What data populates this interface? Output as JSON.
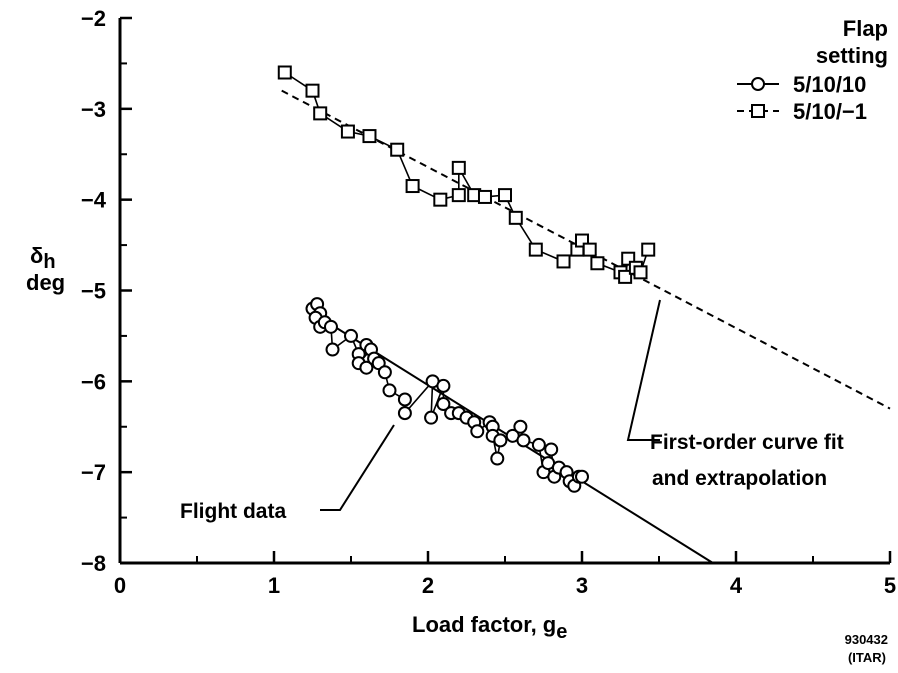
{
  "chart_data": {
    "type": "line",
    "xlabel": "Load factor, ",
    "xlabel_sub": "e",
    "xlabel_var": "g",
    "ylabel_symbol": "δ",
    "ylabel_sub": "h",
    "ylabel_unit": "deg",
    "xlim": [
      0,
      5
    ],
    "ylim": [
      -8,
      -2
    ],
    "xticks": [
      "0",
      "1",
      "2",
      "3",
      "4",
      "5"
    ],
    "yticks": [
      "−2",
      "−3",
      "−4",
      "−5",
      "−6",
      "−7",
      "−8"
    ],
    "grid": false,
    "legend": {
      "title_line1": "Flap",
      "title_line2": "setting",
      "position": "top-right"
    },
    "series": [
      {
        "name": "5/10/10",
        "marker": "circle",
        "line": "solid",
        "points": [
          [
            1.25,
            -5.2
          ],
          [
            1.28,
            -5.15
          ],
          [
            1.3,
            -5.25
          ],
          [
            1.27,
            -5.3
          ],
          [
            1.3,
            -5.4
          ],
          [
            1.33,
            -5.35
          ],
          [
            1.37,
            -5.4
          ],
          [
            1.38,
            -5.65
          ],
          [
            1.5,
            -5.5
          ],
          [
            1.55,
            -5.7
          ],
          [
            1.6,
            -5.6
          ],
          [
            1.63,
            -5.65
          ],
          [
            1.55,
            -5.8
          ],
          [
            1.6,
            -5.85
          ],
          [
            1.65,
            -5.75
          ],
          [
            1.68,
            -5.8
          ],
          [
            1.72,
            -5.9
          ],
          [
            1.75,
            -6.1
          ],
          [
            1.85,
            -6.2
          ],
          [
            1.85,
            -6.35
          ],
          [
            2.03,
            -6.0
          ],
          [
            2.02,
            -6.4
          ],
          [
            2.1,
            -6.05
          ],
          [
            2.1,
            -6.25
          ],
          [
            2.15,
            -6.35
          ],
          [
            2.2,
            -6.35
          ],
          [
            2.25,
            -6.4
          ],
          [
            2.3,
            -6.45
          ],
          [
            2.32,
            -6.55
          ],
          [
            2.4,
            -6.45
          ],
          [
            2.42,
            -6.5
          ],
          [
            2.42,
            -6.6
          ],
          [
            2.45,
            -6.85
          ],
          [
            2.47,
            -6.65
          ],
          [
            2.55,
            -6.6
          ],
          [
            2.6,
            -6.5
          ],
          [
            2.62,
            -6.65
          ],
          [
            2.72,
            -6.7
          ],
          [
            2.75,
            -7.0
          ],
          [
            2.78,
            -6.9
          ],
          [
            2.8,
            -6.75
          ],
          [
            2.82,
            -7.05
          ],
          [
            2.85,
            -6.95
          ],
          [
            2.9,
            -7.0
          ],
          [
            2.92,
            -7.1
          ],
          [
            2.95,
            -7.15
          ],
          [
            2.98,
            -7.05
          ],
          [
            3.0,
            -7.05
          ]
        ]
      },
      {
        "name": "5/10/−1",
        "marker": "square",
        "line": "dashed",
        "points": [
          [
            1.07,
            -2.6
          ],
          [
            1.25,
            -2.8
          ],
          [
            1.3,
            -3.05
          ],
          [
            1.48,
            -3.25
          ],
          [
            1.62,
            -3.3
          ],
          [
            1.8,
            -3.45
          ],
          [
            1.9,
            -3.85
          ],
          [
            2.08,
            -4.0
          ],
          [
            2.2,
            -3.95
          ],
          [
            2.2,
            -3.65
          ],
          [
            2.3,
            -3.95
          ],
          [
            2.37,
            -3.97
          ],
          [
            2.5,
            -3.95
          ],
          [
            2.57,
            -4.2
          ],
          [
            2.7,
            -4.55
          ],
          [
            2.88,
            -4.68
          ],
          [
            2.97,
            -4.55
          ],
          [
            3.0,
            -4.45
          ],
          [
            3.05,
            -4.55
          ],
          [
            3.1,
            -4.7
          ],
          [
            3.25,
            -4.8
          ],
          [
            3.28,
            -4.85
          ],
          [
            3.3,
            -4.65
          ],
          [
            3.35,
            -4.75
          ],
          [
            3.38,
            -4.8
          ],
          [
            3.43,
            -4.55
          ]
        ]
      }
    ],
    "fits": [
      {
        "for": "5/10/−1",
        "style": "dashed",
        "from": [
          1.05,
          -2.8
        ],
        "to": [
          5.0,
          -6.3
        ]
      },
      {
        "for": "5/10/10",
        "style": "solid",
        "from": [
          1.3,
          -5.3
        ],
        "to": [
          3.85,
          -8.0
        ]
      }
    ],
    "annotations": [
      {
        "text_line1": "First-order curve fit",
        "text_line2": "and extrapolation",
        "points_to": [
          3.5,
          -4.9
        ]
      },
      {
        "text": "Flight data",
        "points_to": [
          1.78,
          -6.25
        ]
      }
    ],
    "figure_id_line1": "930432",
    "figure_id_line2": "(ITAR)"
  }
}
